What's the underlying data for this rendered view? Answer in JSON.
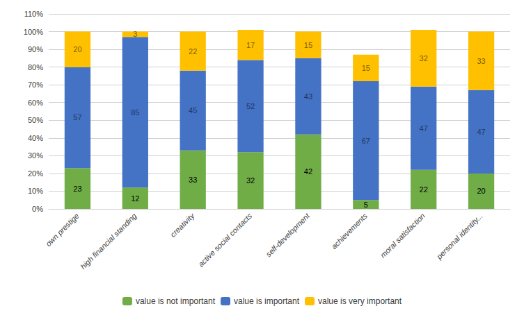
{
  "chart_data": {
    "type": "bar",
    "stacked": true,
    "data_labels": true,
    "grid": true,
    "legend": "bottom",
    "categories": [
      "own prestige",
      "high financial standing",
      "creativity",
      "active social contacts",
      "self-development",
      "achievements",
      "moral satisfaction",
      "personal identity..."
    ],
    "series": [
      {
        "name": "value is not important",
        "color": "#70ad47",
        "values": [
          23,
          12,
          33,
          32,
          42,
          5,
          22,
          20
        ]
      },
      {
        "name": "value is important",
        "color": "#4472c4",
        "values": [
          57,
          85,
          45,
          52,
          43,
          67,
          47,
          47
        ]
      },
      {
        "name": "value is very important",
        "color": "#ffc000",
        "values": [
          20,
          3,
          22,
          17,
          15,
          15,
          32,
          33
        ]
      }
    ],
    "ylim": [
      0,
      110
    ],
    "yticks": [
      {
        "value": 0,
        "label": "0%"
      },
      {
        "value": 10,
        "label": "10%"
      },
      {
        "value": 20,
        "label": "20%"
      },
      {
        "value": 30,
        "label": "30%"
      },
      {
        "value": 40,
        "label": "40%"
      },
      {
        "value": 50,
        "label": "50%"
      },
      {
        "value": 60,
        "label": "60%"
      },
      {
        "value": 70,
        "label": "70%"
      },
      {
        "value": 80,
        "label": "80%"
      },
      {
        "value": 90,
        "label": "90%"
      },
      {
        "value": 100,
        "label": "100%"
      },
      {
        "value": 110,
        "label": "110%"
      }
    ]
  }
}
